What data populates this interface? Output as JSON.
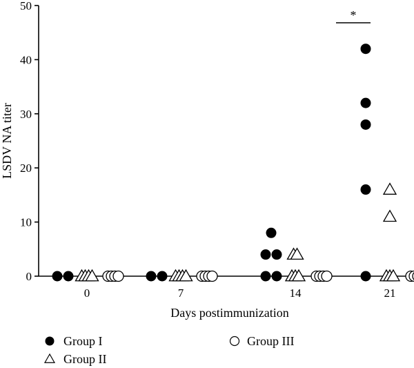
{
  "chart_data": {
    "type": "scatter",
    "xlabel": "Days postimmunization",
    "ylabel": "LSDV NA titer",
    "ylim": [
      0,
      50
    ],
    "yticks": [
      0,
      10,
      20,
      30,
      40,
      50
    ],
    "categories": [
      "0",
      "7",
      "14",
      "21"
    ],
    "series": [
      {
        "name": "Group I",
        "marker": "filled-circle",
        "color": "#000000",
        "values": [
          [
            0,
            0
          ],
          [
            0,
            0
          ],
          [
            4,
            8,
            4,
            0,
            0
          ],
          [
            42,
            32,
            28,
            16,
            0
          ]
        ]
      },
      {
        "name": "Group II",
        "marker": "open-triangle",
        "color": "#000000",
        "values": [
          [
            0,
            0,
            0,
            0
          ],
          [
            0,
            0,
            0,
            0
          ],
          [
            4,
            4,
            0,
            0,
            0
          ],
          [
            16,
            11,
            0,
            0,
            0
          ]
        ]
      },
      {
        "name": "Group III",
        "marker": "open-circle",
        "color": "#000000",
        "values": [
          [
            0,
            0,
            0,
            0
          ],
          [
            0,
            0,
            0,
            0
          ],
          [
            0,
            0,
            0,
            0
          ],
          [
            0,
            0,
            0,
            0
          ]
        ]
      }
    ],
    "annotations": [
      {
        "text": "*",
        "category": "21",
        "spans": [
          "Group I",
          "Group II"
        ]
      }
    ],
    "legend": {
      "position": "bottom",
      "layout": "two-column"
    },
    "grid": false
  }
}
